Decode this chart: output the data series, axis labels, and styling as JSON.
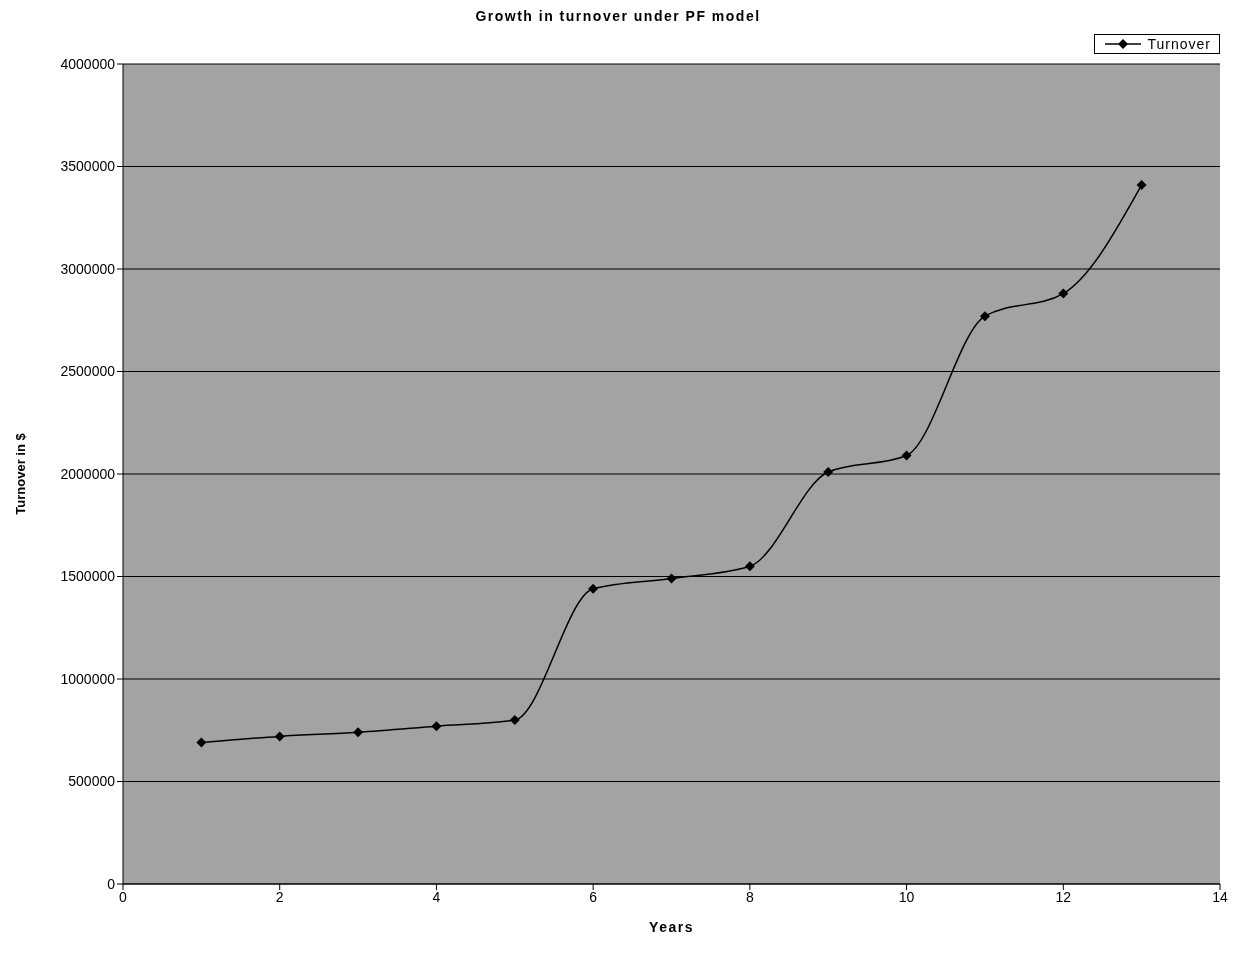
{
  "chart_data": {
    "type": "line",
    "title": "Growth in turnover under PF model",
    "xlabel": "Years",
    "ylabel": "Turnover in $",
    "x": [
      1,
      2,
      3,
      4,
      5,
      6,
      7,
      8,
      9,
      10,
      11,
      12,
      13
    ],
    "series": [
      {
        "name": "Turnover",
        "color": "#000000",
        "values": [
          690000,
          720000,
          740000,
          770000,
          800000,
          1440000,
          1490000,
          1550000,
          2010000,
          2090000,
          2770000,
          2880000,
          3410000
        ]
      }
    ],
    "xlim": [
      0,
      14
    ],
    "xticks": [
      0,
      2,
      4,
      6,
      8,
      10,
      12,
      14
    ],
    "ylim": [
      0,
      4000000
    ],
    "yticks": [
      0,
      500000,
      1000000,
      1500000,
      2000000,
      2500000,
      3000000,
      3500000,
      4000000
    ],
    "grid": "y",
    "legend": "top right",
    "marker": "diamond",
    "line_style": "solid"
  }
}
